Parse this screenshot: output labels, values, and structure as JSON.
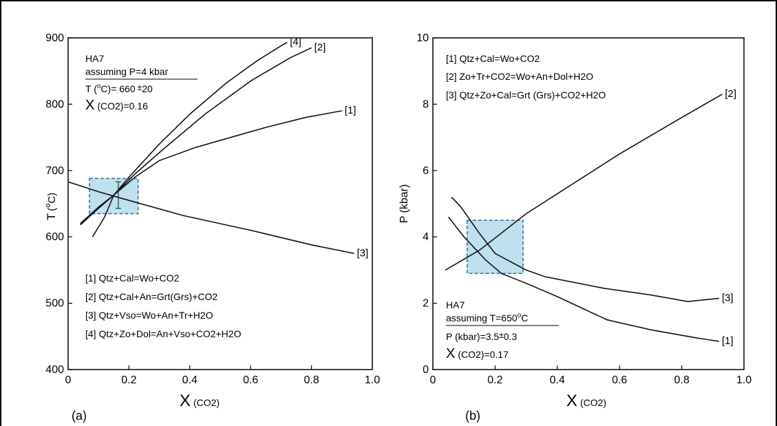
{
  "chart_data": [
    {
      "type": "line",
      "panel_label": "(a)",
      "xlabel_main": "X",
      "xlabel_sub": "(CO2)",
      "ylabel": "T",
      "ylabel_sup": "o",
      "ylabel_unit": "C)",
      "ylabel_open": "(",
      "xlim": [
        0,
        1.0
      ],
      "ylim": [
        400,
        900
      ],
      "xticks": [
        0,
        0.2,
        0.4,
        0.6,
        0.8,
        1.0
      ],
      "xtick_labels": [
        "0",
        "0.2",
        "0.4",
        "0.6",
        "0.8",
        "1.0"
      ],
      "yticks": [
        400,
        500,
        600,
        700,
        800,
        900
      ],
      "ytick_labels": [
        "400",
        "500",
        "600",
        "700",
        "800",
        "900"
      ],
      "series": [
        {
          "name": "[1]",
          "x": [
            0.04,
            0.1,
            0.15,
            0.22,
            0.3,
            0.42,
            0.55,
            0.65,
            0.78,
            0.9
          ],
          "y": [
            620,
            645,
            663,
            690,
            715,
            735,
            752,
            765,
            780,
            790
          ]
        },
        {
          "name": "[2]",
          "x": [
            0.04,
            0.1,
            0.15,
            0.22,
            0.32,
            0.45,
            0.6,
            0.73,
            0.8
          ],
          "y": [
            618,
            643,
            663,
            695,
            735,
            785,
            835,
            870,
            885
          ]
        },
        {
          "name": "[3]",
          "x": [
            0,
            0.1,
            0.2,
            0.38,
            0.6,
            0.8,
            0.94
          ],
          "y": [
            683,
            668,
            655,
            632,
            610,
            588,
            575
          ]
        },
        {
          "name": "[4]",
          "x": [
            0.08,
            0.12,
            0.15,
            0.2,
            0.3,
            0.4,
            0.52,
            0.62,
            0.7,
            0.72
          ],
          "y": [
            600,
            630,
            663,
            690,
            740,
            785,
            832,
            865,
            888,
            893
          ]
        }
      ],
      "series_end_labels": [
        "[1]",
        "[2]",
        "[3]",
        "[4]"
      ],
      "highlight_box": {
        "x": [
          0.07,
          0.23
        ],
        "y": [
          635,
          688
        ]
      },
      "error_bar": {
        "x": 0.165,
        "y": 663,
        "yerr": 20
      },
      "info_lines": [
        "HA7",
        "assuming P=4 kbar",
        "T (",
        "C)= 660",
        "20",
        "X",
        "(CO2)=0.16"
      ],
      "info_sup": "o",
      "info_pm": "±",
      "legend": [
        "[1] Qtz+Cal=Wo+CO2",
        "[2] Qtz+Cal+An=Grt(Grs)+CO2",
        "[3] Qtz+Vso=Wo+An+Tr+H2O",
        "[4] Qtz+Zo+Dol=An+Vso+CO2+H2O"
      ],
      "grid": false
    },
    {
      "type": "line",
      "panel_label": "(b)",
      "xlabel_main": "X",
      "xlabel_sub": "(CO2)",
      "ylabel": "P (kbar)",
      "xlim": [
        0,
        1.0
      ],
      "ylim": [
        0,
        10
      ],
      "xticks": [
        0,
        0.2,
        0.4,
        0.6,
        0.8,
        1.0
      ],
      "xtick_labels": [
        "0",
        "0.2",
        "0.4",
        "0.6",
        "0.8",
        "1.0"
      ],
      "yticks": [
        0,
        2,
        4,
        6,
        8,
        10
      ],
      "ytick_labels": [
        "0",
        "2",
        "4",
        "6",
        "8",
        "10"
      ],
      "series": [
        {
          "name": "[1]",
          "x": [
            0.05,
            0.1,
            0.17,
            0.22,
            0.3,
            0.4,
            0.56,
            0.7,
            0.85,
            0.92
          ],
          "y": [
            4.6,
            4.0,
            3.3,
            2.9,
            2.6,
            2.2,
            1.5,
            1.2,
            0.95,
            0.85
          ]
        },
        {
          "name": "[2]",
          "x": [
            0.04,
            0.15,
            0.3,
            0.45,
            0.6,
            0.8,
            0.93
          ],
          "y": [
            3.0,
            3.6,
            4.7,
            5.6,
            6.5,
            7.6,
            8.3
          ]
        },
        {
          "name": "[3]",
          "x": [
            0.06,
            0.09,
            0.15,
            0.2,
            0.3,
            0.36,
            0.55,
            0.7,
            0.82,
            0.92
          ],
          "y": [
            5.2,
            4.9,
            4.1,
            3.5,
            3.0,
            2.8,
            2.45,
            2.25,
            2.05,
            2.15
          ]
        }
      ],
      "series_end_labels": [
        "[1]",
        "[2]",
        "[3]"
      ],
      "highlight_box": {
        "x": [
          0.11,
          0.29
        ],
        "y": [
          2.9,
          4.5
        ]
      },
      "legend": [
        "[1] Qtz+Cal=Wo+CO2",
        "[2] Zo+Tr+CO2=Wo+An+Dol+H2O",
        "[3] Qtz+Zo+Cal=Grt (Grs)+CO2+H2O"
      ],
      "info_lines": [
        "HA7",
        "assuming T=650",
        "C",
        "P (kbar)=3.5",
        "0.3",
        "X",
        "(CO2)=0.17"
      ],
      "info_sup": "o",
      "info_pm": "±",
      "grid": false
    }
  ],
  "colors": {
    "highlight_fill": "#bfe0ee",
    "highlight_stroke": "#3a6b85",
    "line": "#111111"
  }
}
